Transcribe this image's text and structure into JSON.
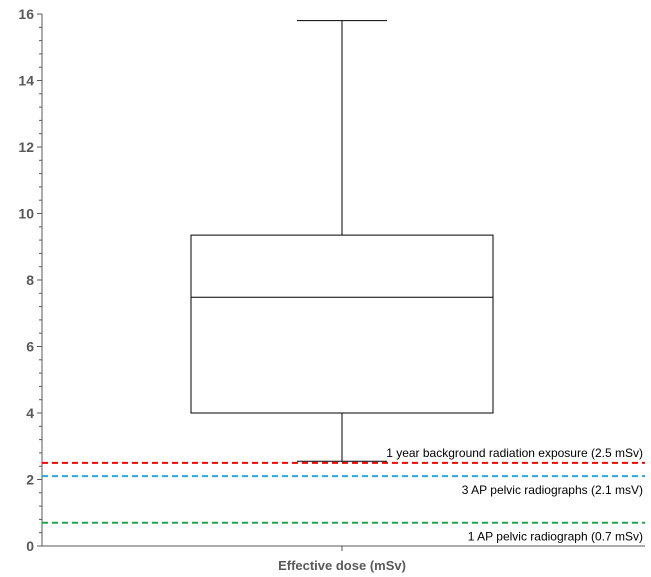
{
  "chart_data": {
    "type": "box",
    "xlabel": "Effective dose (mSv)",
    "ylabel": "",
    "ylim": [
      0,
      16
    ],
    "yticks": [
      0,
      2,
      4,
      6,
      8,
      10,
      12,
      14,
      16
    ],
    "minor_tick_step": 0.4,
    "grid": false,
    "box": {
      "min": 2.55,
      "q1": 4.0,
      "median": 7.48,
      "q3": 9.35,
      "max": 15.8
    },
    "reference_lines": [
      {
        "value": 2.5,
        "label": "1 year background radiation exposure (2.5 mSv)",
        "color": "#ff0000"
      },
      {
        "value": 2.1,
        "label": "3 AP pelvic radiographs (2.1 msV)",
        "color": "#29a8e0"
      },
      {
        "value": 0.7,
        "label": "1 AP pelvic radiograph (0.7 mSv)",
        "color": "#1fa84a"
      }
    ]
  }
}
